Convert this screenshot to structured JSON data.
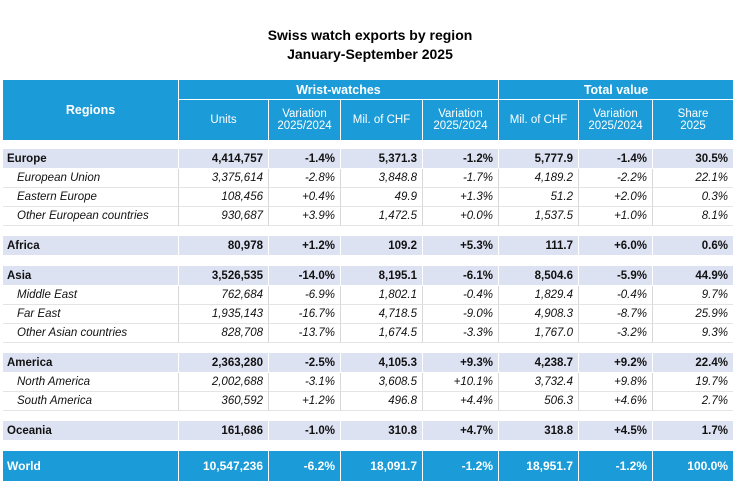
{
  "title": "Swiss watch exports by region",
  "subtitle": "January-September 2025",
  "header": {
    "regions": "Regions",
    "wrist_watches": "Wrist-watches",
    "total_value": "Total value",
    "columns": [
      [
        "Units"
      ],
      [
        "Variation",
        "2025/2024"
      ],
      [
        "Mil. of CHF"
      ],
      [
        "Variation",
        "2025/2024"
      ],
      [
        "Mil. of CHF"
      ],
      [
        "Variation",
        "2025/2024"
      ],
      [
        "Share",
        "2025"
      ]
    ]
  },
  "groups": [
    {
      "row": [
        "Europe",
        "4,414,757",
        "-1.4%",
        "5,371.3",
        "-1.2%",
        "5,777.9",
        "-1.4%",
        "30.5%"
      ],
      "subrows": [
        [
          "European Union",
          "3,375,614",
          "-2.8%",
          "3,848.8",
          "-1.7%",
          "4,189.2",
          "-2.2%",
          "22.1%"
        ],
        [
          "Eastern Europe",
          "108,456",
          "+0.4%",
          "49.9",
          "+1.3%",
          "51.2",
          "+2.0%",
          "0.3%"
        ],
        [
          "Other European countries",
          "930,687",
          "+3.9%",
          "1,472.5",
          "+0.0%",
          "1,537.5",
          "+1.0%",
          "8.1%"
        ]
      ]
    },
    {
      "row": [
        "Africa",
        "80,978",
        "+1.2%",
        "109.2",
        "+5.3%",
        "111.7",
        "+6.0%",
        "0.6%"
      ],
      "subrows": []
    },
    {
      "row": [
        "Asia",
        "3,526,535",
        "-14.0%",
        "8,195.1",
        "-6.1%",
        "8,504.6",
        "-5.9%",
        "44.9%"
      ],
      "subrows": [
        [
          "Middle East",
          "762,684",
          "-6.9%",
          "1,802.1",
          "-0.4%",
          "1,829.4",
          "-0.4%",
          "9.7%"
        ],
        [
          "Far East",
          "1,935,143",
          "-16.7%",
          "4,718.5",
          "-9.0%",
          "4,908.3",
          "-8.7%",
          "25.9%"
        ],
        [
          "Other Asian countries",
          "828,708",
          "-13.7%",
          "1,674.5",
          "-3.3%",
          "1,767.0",
          "-3.2%",
          "9.3%"
        ]
      ]
    },
    {
      "row": [
        "America",
        "2,363,280",
        "-2.5%",
        "4,105.3",
        "+9.3%",
        "4,238.7",
        "+9.2%",
        "22.4%"
      ],
      "subrows": [
        [
          "North America",
          "2,002,688",
          "-3.1%",
          "3,608.5",
          "+10.1%",
          "3,732.4",
          "+9.8%",
          "19.7%"
        ],
        [
          "South America",
          "360,592",
          "+1.2%",
          "496.8",
          "+4.4%",
          "506.3",
          "+4.6%",
          "2.7%"
        ]
      ]
    },
    {
      "row": [
        "Oceania",
        "161,686",
        "-1.0%",
        "310.8",
        "+4.7%",
        "318.8",
        "+4.5%",
        "1.7%"
      ],
      "subrows": []
    }
  ],
  "world": [
    "World",
    "10,547,236",
    "-6.2%",
    "18,091.7",
    "-1.2%",
    "18,951.7",
    "-1.2%",
    "100.0%"
  ]
}
